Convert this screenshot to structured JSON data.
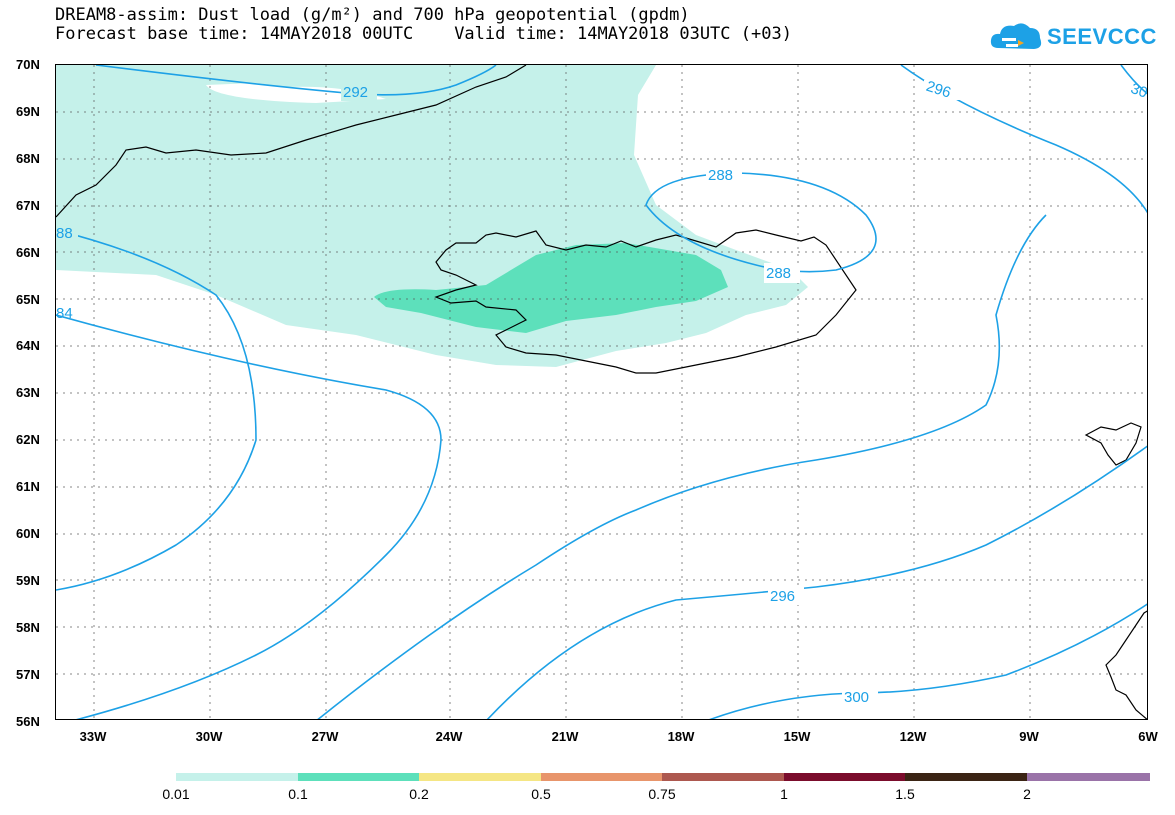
{
  "header": {
    "line1": "DREAM8-assim: Dust load (g/m²) and 700 hPa geopotential (gpdm)",
    "line2_base": "Forecast base time: 14MAY2018 00UTC",
    "line2_valid": "Valid time: 14MAY2018 03UTC (+03)"
  },
  "logo": {
    "text": "SEEVCCC",
    "icon": "cloud-icon",
    "color": "#1da1e6"
  },
  "axes": {
    "lat_labels": [
      "70N",
      "69N",
      "68N",
      "67N",
      "66N",
      "65N",
      "64N",
      "63N",
      "62N",
      "61N",
      "60N",
      "59N",
      "58N",
      "57N",
      "56N"
    ],
    "lon_labels": [
      "33W",
      "30W",
      "27W",
      "24W",
      "21W",
      "18W",
      "15W",
      "12W",
      "9W",
      "6W"
    ]
  },
  "contours": {
    "color": "#1da1e6",
    "labels": [
      "292",
      "296",
      "30",
      "288",
      "288",
      "88",
      "84",
      "296",
      "300"
    ]
  },
  "dust_fill": {
    "low_color": "#c5f1ea",
    "mid_color": "#5de0bb"
  },
  "colorbar": {
    "colors": [
      "#c5f1ea",
      "#5de0bb",
      "#f5e684",
      "#e8956b",
      "#ad584f",
      "#7b0c2c",
      "#3b2414",
      "#9a73a8"
    ],
    "labels": [
      "0.01",
      "0.1",
      "0.2",
      "0.5",
      "0.75",
      "1",
      "1.5",
      "2"
    ]
  }
}
